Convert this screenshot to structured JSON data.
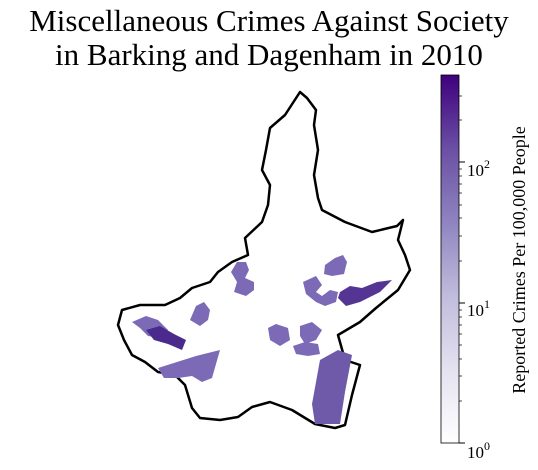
{
  "title_line1": "Miscellaneous Crimes Against Society",
  "title_line2": "in Barking and Dagenham in 2010",
  "colorbar": {
    "label": "Reported Crimes Per 100,000 People",
    "scale": "log",
    "min": 1,
    "max": 400,
    "ticks": [
      {
        "value": 1,
        "base": "10",
        "exp": "0"
      },
      {
        "value": 10,
        "base": "10",
        "exp": "1"
      },
      {
        "value": 100,
        "base": "10",
        "exp": "2"
      }
    ],
    "colors": [
      "#ffffff",
      "#dcdaec",
      "#a9a4d0",
      "#7a6cb4",
      "#5d3f9a",
      "#3f007d"
    ]
  },
  "map": {
    "borough": "Barking and Dagenham",
    "year": "2010",
    "boundary_color": "#000000"
  }
}
